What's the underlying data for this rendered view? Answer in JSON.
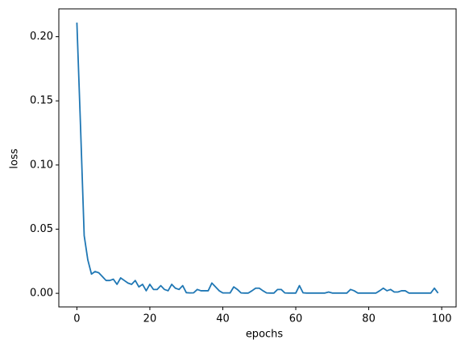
{
  "chart_data": {
    "type": "line",
    "xlabel": "epochs",
    "ylabel": "loss",
    "x": [
      0,
      1,
      2,
      3,
      4,
      5,
      6,
      7,
      8,
      9,
      10,
      11,
      12,
      13,
      14,
      15,
      16,
      17,
      18,
      19,
      20,
      21,
      22,
      23,
      24,
      25,
      26,
      27,
      28,
      29,
      30,
      31,
      32,
      33,
      34,
      35,
      36,
      37,
      38,
      39,
      40,
      41,
      42,
      43,
      44,
      45,
      46,
      47,
      48,
      49,
      50,
      51,
      52,
      53,
      54,
      55,
      56,
      57,
      58,
      59,
      60,
      61,
      62,
      63,
      64,
      65,
      66,
      67,
      68,
      69,
      70,
      71,
      72,
      73,
      74,
      75,
      76,
      77,
      78,
      79,
      80,
      81,
      82,
      83,
      84,
      85,
      86,
      87,
      88,
      89,
      90,
      91,
      92,
      93,
      94,
      95,
      96,
      97,
      98,
      99
    ],
    "series": [
      {
        "name": "loss",
        "color": "#1f77b4",
        "values": [
          0.211,
          0.13,
          0.045,
          0.026,
          0.015,
          0.017,
          0.016,
          0.013,
          0.01,
          0.01,
          0.011,
          0.007,
          0.012,
          0.01,
          0.008,
          0.007,
          0.01,
          0.005,
          0.007,
          0.002,
          0.007,
          0.003,
          0.003,
          0.006,
          0.003,
          0.002,
          0.007,
          0.004,
          0.003,
          0.006,
          0.0005,
          0.0003,
          0.0004,
          0.003,
          0.002,
          0.002,
          0.002,
          0.008,
          0.005,
          0.002,
          0.0003,
          0.0003,
          0.0003,
          0.005,
          0.003,
          0.0003,
          0.0002,
          0.0002,
          0.002,
          0.004,
          0.004,
          0.002,
          0.0003,
          0.0002,
          0.0002,
          0.003,
          0.003,
          0.0003,
          0.0002,
          0.0002,
          0.0002,
          0.006,
          0.0004,
          0.0002,
          0.0002,
          0.0002,
          0.0002,
          0.0002,
          0.0002,
          0.001,
          0.0002,
          0.0002,
          0.0002,
          0.0002,
          0.0002,
          0.003,
          0.002,
          0.0002,
          0.0002,
          0.0002,
          0.0002,
          0.0002,
          0.0002,
          0.002,
          0.004,
          0.002,
          0.003,
          0.001,
          0.001,
          0.002,
          0.002,
          0.0002,
          0.0002,
          0.0002,
          0.0002,
          0.0002,
          0.0002,
          0.0002,
          0.004,
          0.0002
        ]
      }
    ],
    "xlim": [
      -4.95,
      103.95
    ],
    "xticks": [
      0,
      20,
      40,
      60,
      80,
      100
    ],
    "ylim": [
      -0.0106,
      0.2217
    ],
    "yticks": [
      {
        "value": 0,
        "label": "0.00"
      },
      {
        "value": 0.05,
        "label": "0.05"
      },
      {
        "value": 0.1,
        "label": "0.10"
      },
      {
        "value": 0.15,
        "label": "0.15"
      },
      {
        "value": 0.2,
        "label": "0.20"
      }
    ],
    "grid": false
  }
}
